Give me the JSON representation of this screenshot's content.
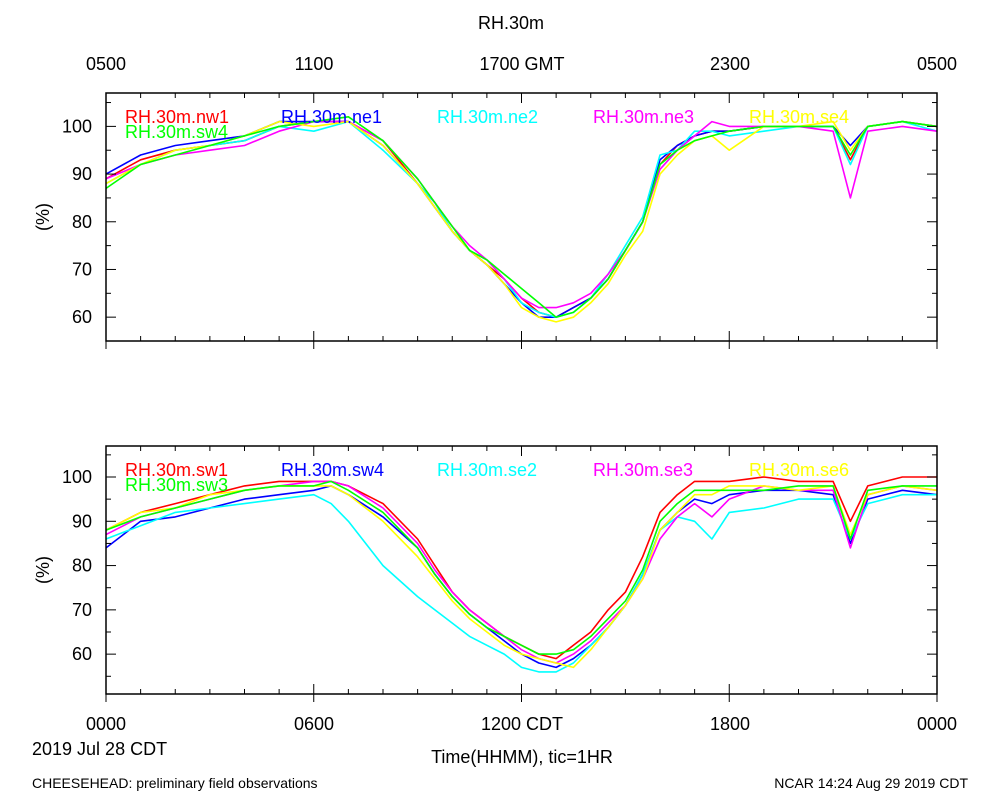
{
  "header": {
    "title": "RH.30m",
    "top_ticks": [
      "0500",
      "1100",
      "1700 GMT",
      "2300",
      "0500"
    ]
  },
  "footer": {
    "bottom_ticks": [
      "0000",
      "0600",
      "1200 CDT",
      "1800",
      "0000"
    ],
    "date": "2019 Jul 28 CDT",
    "xlabel": "Time(HHMM), tic=1HR",
    "left_note": "CHEESEHEAD: preliminary field observations",
    "right_note": "NCAR 14:24 Aug 29 2019 CDT"
  },
  "chart_data": [
    {
      "type": "line",
      "title": "RH.30m",
      "ylabel": "(%)",
      "ylim": [
        55,
        107
      ],
      "xlim": [
        0,
        24
      ],
      "yticks": [
        60,
        70,
        80,
        90,
        100
      ],
      "grid": false,
      "legend": "top, single row inside plot",
      "series": [
        {
          "name": "RH.30m.nw1",
          "color": "#ff0000",
          "x": [
            0,
            1,
            2,
            3,
            4,
            5,
            6,
            7,
            8,
            9,
            9.5,
            10,
            10.5,
            11,
            11.5,
            12,
            12.5,
            13,
            13.5,
            14,
            14.5,
            15,
            15.5,
            16,
            16.5,
            17,
            17.5,
            18,
            19,
            20,
            21,
            21.5,
            22,
            23,
            24
          ],
          "y": [
            89,
            93,
            95,
            96,
            97,
            100,
            101,
            101,
            97,
            88,
            84,
            78,
            74,
            71,
            68,
            64,
            61,
            60,
            62,
            64,
            68,
            74,
            80,
            92,
            96,
            98,
            99,
            99,
            100,
            100,
            100,
            93,
            100,
            101,
            100
          ]
        },
        {
          "name": "RH.30m.ne1",
          "color": "#0000ff",
          "x": [
            0,
            1,
            2,
            3,
            4,
            5,
            6,
            7,
            8,
            9,
            9.5,
            10,
            10.5,
            11,
            11.5,
            12,
            12.5,
            13,
            13.5,
            14,
            14.5,
            15,
            15.5,
            16,
            16.5,
            17,
            17.5,
            18,
            19,
            20,
            21,
            21.5,
            22,
            23,
            24
          ],
          "y": [
            90,
            94,
            96,
            97,
            98,
            101,
            101,
            101,
            96,
            88,
            83,
            78,
            74,
            71,
            67,
            63,
            60,
            60,
            62,
            64,
            68,
            74,
            80,
            93,
            96,
            98,
            99,
            99,
            100,
            100,
            100,
            96,
            100,
            101,
            100
          ]
        },
        {
          "name": "RH.30m.ne2",
          "color": "#00ffff",
          "x": [
            0,
            1,
            2,
            3,
            4,
            5,
            6,
            7,
            8,
            9,
            9.5,
            10,
            10.5,
            11,
            11.5,
            12,
            12.5,
            13,
            13.5,
            14,
            14.5,
            15,
            15.5,
            16,
            16.5,
            17,
            17.5,
            18,
            19,
            20,
            21,
            21.5,
            22,
            23,
            24
          ],
          "y": [
            88,
            92,
            95,
            96,
            97,
            100,
            99,
            101,
            95,
            88,
            84,
            78,
            74,
            72,
            68,
            63,
            61,
            60,
            61,
            64,
            69,
            75,
            81,
            94,
            95,
            99,
            99,
            98,
            99,
            100,
            100,
            92,
            100,
            101,
            99
          ]
        },
        {
          "name": "RH.30m.ne3",
          "color": "#ff00ff",
          "x": [
            0,
            1,
            2,
            3,
            4,
            5,
            6,
            7,
            8,
            9,
            9.5,
            10,
            10.5,
            11,
            11.5,
            12,
            12.5,
            13,
            13.5,
            14,
            14.5,
            15,
            15.5,
            16,
            16.5,
            17,
            17.5,
            18,
            19,
            20,
            21,
            21.5,
            22,
            23,
            24
          ],
          "y": [
            89,
            92,
            94,
            95,
            96,
            99,
            101,
            101,
            97,
            89,
            84,
            79,
            75,
            72,
            68,
            64,
            62,
            62,
            63,
            65,
            69,
            74,
            80,
            91,
            95,
            98,
            101,
            100,
            100,
            100,
            99,
            85,
            99,
            100,
            99
          ]
        },
        {
          "name": "RH.30m.se4",
          "color": "#ffff00",
          "x": [
            0,
            1,
            2,
            3,
            4,
            5,
            6,
            7,
            8,
            9,
            9.5,
            10,
            10.5,
            11,
            11.5,
            12,
            12.5,
            13,
            13.5,
            14,
            14.5,
            15,
            15.5,
            16,
            16.5,
            17,
            17.5,
            18,
            19,
            20,
            21,
            21.5,
            22,
            23,
            24
          ],
          "y": [
            88,
            92,
            95,
            96,
            98,
            101,
            100,
            101,
            96,
            88,
            83,
            78,
            74,
            71,
            67,
            62,
            60,
            59,
            60,
            63,
            67,
            73,
            78,
            90,
            94,
            97,
            98,
            95,
            100,
            100,
            101,
            95,
            100,
            101,
            100
          ]
        },
        {
          "name": "RH.30m.sw4",
          "color": "#00ff00",
          "x": [
            0,
            1,
            2,
            3,
            4,
            5,
            6,
            7,
            8,
            9,
            9.5,
            10,
            10.5,
            11,
            11.5,
            12,
            12.5,
            13,
            13.5,
            14,
            14.5,
            15,
            15.5,
            16,
            16.5,
            17,
            17.5,
            18,
            19,
            20,
            21,
            21.5,
            22,
            23,
            24
          ],
          "y": [
            87,
            92,
            94,
            96,
            98,
            100,
            101,
            102,
            97,
            89,
            84,
            79,
            74,
            72,
            69,
            66,
            63,
            60,
            61,
            64,
            68,
            74,
            80,
            92,
            95,
            97,
            98,
            99,
            100,
            100,
            100,
            94,
            100,
            101,
            100
          ]
        }
      ]
    },
    {
      "type": "line",
      "title": "",
      "ylabel": "(%)",
      "ylim": [
        51,
        107
      ],
      "xlim": [
        0,
        24
      ],
      "yticks": [
        60,
        70,
        80,
        90,
        100
      ],
      "grid": false,
      "legend": "top, single row inside plot",
      "series": [
        {
          "name": "RH.30m.sw1",
          "color": "#ff0000",
          "x": [
            0,
            1,
            2,
            3,
            4,
            5,
            6,
            6.5,
            7,
            8,
            9,
            9.5,
            10,
            10.5,
            11,
            11.5,
            12,
            12.5,
            13,
            13.5,
            14,
            14.5,
            15,
            15.5,
            16,
            16.5,
            17,
            17.5,
            18,
            19,
            20,
            21,
            21.5,
            22,
            23,
            24
          ],
          "y": [
            88,
            92,
            94,
            96,
            98,
            99,
            99,
            99,
            98,
            94,
            86,
            80,
            74,
            70,
            67,
            64,
            62,
            60,
            59,
            62,
            65,
            70,
            74,
            82,
            92,
            96,
            99,
            99,
            99,
            100,
            99,
            99,
            90,
            98,
            100,
            100
          ]
        },
        {
          "name": "RH.30m.sw4",
          "color": "#0000ff",
          "x": [
            0,
            1,
            2,
            3,
            4,
            5,
            6,
            6.5,
            7,
            8,
            9,
            9.5,
            10,
            10.5,
            11,
            11.5,
            12,
            12.5,
            13,
            13.5,
            14,
            14.5,
            15,
            15.5,
            16,
            16.5,
            17,
            17.5,
            18,
            19,
            20,
            21,
            21.5,
            22,
            23,
            24
          ],
          "y": [
            84,
            90,
            91,
            93,
            95,
            96,
            97,
            98,
            96,
            91,
            84,
            78,
            73,
            69,
            66,
            63,
            60,
            58,
            57,
            59,
            62,
            66,
            71,
            78,
            88,
            92,
            95,
            94,
            96,
            97,
            97,
            96,
            85,
            95,
            97,
            96
          ]
        },
        {
          "name": "RH.30m.se2",
          "color": "#00ffff",
          "x": [
            0,
            1,
            2,
            3,
            4,
            5,
            6,
            6.5,
            7,
            8,
            9,
            9.5,
            10,
            10.5,
            11,
            11.5,
            12,
            12.5,
            13,
            13.5,
            14,
            14.5,
            15,
            15.5,
            16,
            16.5,
            17,
            17.5,
            18,
            19,
            20,
            21,
            21.5,
            22,
            23,
            24
          ],
          "y": [
            86,
            89,
            92,
            93,
            94,
            95,
            96,
            94,
            90,
            80,
            73,
            70,
            67,
            64,
            62,
            60,
            57,
            56,
            56,
            58,
            62,
            66,
            71,
            78,
            88,
            91,
            90,
            86,
            92,
            93,
            95,
            95,
            86,
            94,
            96,
            96
          ]
        },
        {
          "name": "RH.30m.se3",
          "color": "#ff00ff",
          "x": [
            0,
            1,
            2,
            3,
            4,
            5,
            6,
            6.5,
            7,
            8,
            9,
            9.5,
            10,
            10.5,
            11,
            11.5,
            12,
            12.5,
            13,
            13.5,
            14,
            14.5,
            15,
            15.5,
            16,
            16.5,
            17,
            17.5,
            18,
            19,
            20,
            21,
            21.5,
            22,
            23,
            24
          ],
          "y": [
            87,
            91,
            93,
            95,
            97,
            98,
            99,
            99,
            98,
            93,
            85,
            79,
            74,
            70,
            67,
            64,
            61,
            59,
            58,
            60,
            63,
            67,
            71,
            77,
            86,
            91,
            94,
            91,
            95,
            98,
            97,
            97,
            84,
            96,
            98,
            97
          ]
        },
        {
          "name": "RH.30m.se6",
          "color": "#ffff00",
          "x": [
            0,
            1,
            2,
            3,
            4,
            5,
            6,
            6.5,
            7,
            8,
            9,
            9.5,
            10,
            10.5,
            11,
            11.5,
            12,
            12.5,
            13,
            13.5,
            14,
            14.5,
            15,
            15.5,
            16,
            16.5,
            17,
            17.5,
            18,
            19,
            20,
            21,
            21.5,
            22,
            23,
            24
          ],
          "y": [
            88,
            92,
            93,
            96,
            97,
            98,
            98,
            98,
            96,
            90,
            82,
            77,
            72,
            68,
            65,
            62,
            60,
            59,
            58,
            57,
            61,
            66,
            71,
            77,
            88,
            92,
            96,
            96,
            98,
            98,
            97,
            98,
            87,
            96,
            98,
            97
          ]
        },
        {
          "name": "RH.30m.sw3",
          "color": "#00ff00",
          "x": [
            0,
            1,
            2,
            3,
            4,
            5,
            6,
            6.5,
            7,
            8,
            9,
            9.5,
            10,
            10.5,
            11,
            11.5,
            12,
            12.5,
            13,
            13.5,
            14,
            14.5,
            15,
            15.5,
            16,
            16.5,
            17,
            17.5,
            18,
            19,
            20,
            21,
            21.5,
            22,
            23,
            24
          ],
          "y": [
            88,
            91,
            93,
            95,
            97,
            98,
            98,
            99,
            97,
            92,
            84,
            78,
            73,
            69,
            66,
            64,
            62,
            60,
            60,
            61,
            64,
            68,
            72,
            79,
            90,
            94,
            97,
            97,
            97,
            97,
            98,
            98,
            86,
            97,
            98,
            98
          ]
        }
      ]
    }
  ]
}
